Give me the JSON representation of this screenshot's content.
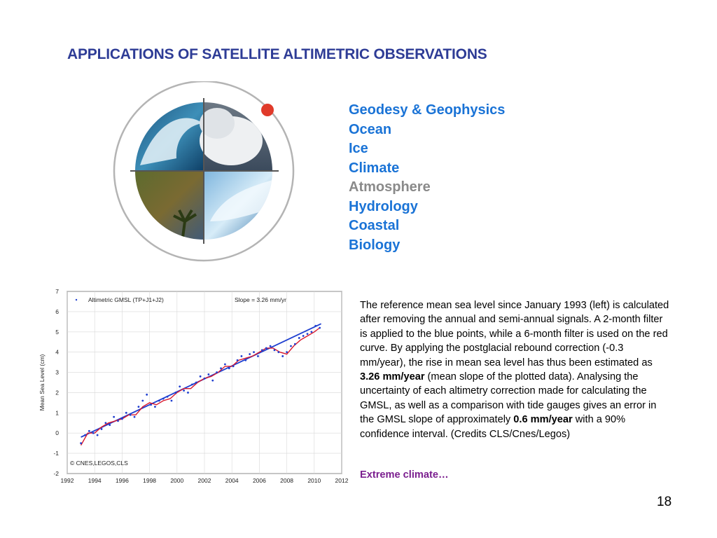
{
  "slide": {
    "title": "APPLICATIONS OF SATELLITE ALTIMETRIC OBSERVATIONS",
    "page_number": "18"
  },
  "topics": [
    {
      "label": "Geodesy & Geophysics",
      "color": "#1a73d6"
    },
    {
      "label": "Ocean",
      "color": "#1a73d6"
    },
    {
      "label": "Ice",
      "color": "#1a73d6"
    },
    {
      "label": "Climate",
      "color": "#1a73d6"
    },
    {
      "label": "Atmosphere",
      "color": "#8a8a8a"
    },
    {
      "label": "Hydrology",
      "color": "#1a73d6"
    },
    {
      "label": "Coastal",
      "color": "#1a73d6"
    },
    {
      "label": "Biology",
      "color": "#1a73d6"
    }
  ],
  "description": {
    "part1": "The reference mean sea level since January 1993 (left) is calculated after removing the annual and semi-annual signals. A 2-month filter is applied to the blue points, while a 6-month filter is used on the red curve. By applying the postglacial rebound correction (-0.3 mm/year), the  rise in mean sea level has thus been estimated as ",
    "bold1": "3.26 mm/year",
    "part2": " (mean slope of the plotted data). Analysing the uncertainty of each altimetry correction made for calculating the GMSL, as well as a comparison with tide gauges gives an error in the GMSL slope of approximately ",
    "bold2": "0.6 mm/year",
    "part3": " with a 90% confidence interval. (Credits CLS/Cnes/Legos)"
  },
  "extreme_link": "Extreme climate…",
  "chart_data": {
    "type": "scatter",
    "ylabel": "Mean Sea Level (cm)",
    "xlim": [
      1992,
      2012
    ],
    "ylim": [
      -2,
      7
    ],
    "x_ticks": [
      "1992",
      "1994",
      "1996",
      "1998",
      "2000",
      "2002",
      "2004",
      "2006",
      "2008",
      "2010",
      "2012"
    ],
    "y_ticks": [
      "-2",
      "-1",
      "0",
      "1",
      "2",
      "3",
      "4",
      "5",
      "6",
      "7"
    ],
    "legend": "Altimetric GMSL (TP+J1+J2)",
    "slope_label": "Slope = 3.26 mm/yr",
    "credit": "© CNES,LEGOS,CLS",
    "trend": {
      "x": [
        1993.0,
        2010.5
      ],
      "y": [
        -0.2,
        5.4
      ]
    },
    "series": [
      {
        "name": "Altimetric GMSL (TP+J1+J2)",
        "color": "#1f3fd0",
        "x": [
          1993.0,
          1993.3,
          1993.6,
          1993.9,
          1994.2,
          1994.5,
          1994.8,
          1995.1,
          1995.4,
          1995.7,
          1996.0,
          1996.3,
          1996.6,
          1996.9,
          1997.2,
          1997.5,
          1997.8,
          1998.1,
          1998.4,
          1998.7,
          1999.0,
          1999.3,
          1999.6,
          1999.9,
          2000.2,
          2000.5,
          2000.8,
          2001.1,
          2001.4,
          2001.7,
          2002.0,
          2002.3,
          2002.6,
          2002.9,
          2003.2,
          2003.5,
          2003.8,
          2004.1,
          2004.4,
          2004.7,
          2005.0,
          2005.3,
          2005.6,
          2005.9,
          2006.2,
          2006.5,
          2006.8,
          2007.1,
          2007.4,
          2007.7,
          2008.0,
          2008.3,
          2008.6,
          2008.9,
          2009.2,
          2009.5,
          2009.8,
          2010.1,
          2010.4
        ],
        "y": [
          -0.5,
          -0.1,
          0.1,
          0.0,
          -0.1,
          0.2,
          0.5,
          0.4,
          0.8,
          0.6,
          0.7,
          1.0,
          0.9,
          0.8,
          1.3,
          1.6,
          1.9,
          1.4,
          1.3,
          1.6,
          1.7,
          1.8,
          1.6,
          2.0,
          2.3,
          2.1,
          2.0,
          2.4,
          2.5,
          2.8,
          2.7,
          2.9,
          2.6,
          3.0,
          3.2,
          3.4,
          3.2,
          3.3,
          3.6,
          3.8,
          3.6,
          3.9,
          4.0,
          3.8,
          4.1,
          4.2,
          4.3,
          4.1,
          4.0,
          3.8,
          4.0,
          4.3,
          4.4,
          4.7,
          4.8,
          4.9,
          5.0,
          5.3,
          5.2
        ]
      }
    ],
    "smooth": {
      "name": "6-month filter",
      "color": "#d9182d",
      "x": [
        1993.0,
        1993.5,
        1994.0,
        1994.5,
        1995.0,
        1995.5,
        1996.0,
        1996.5,
        1997.0,
        1997.5,
        1998.0,
        1998.5,
        1999.0,
        1999.5,
        2000.0,
        2000.5,
        2001.0,
        2001.5,
        2002.0,
        2002.5,
        2003.0,
        2003.5,
        2004.0,
        2004.5,
        2005.0,
        2005.5,
        2006.0,
        2006.5,
        2007.0,
        2007.5,
        2008.0,
        2008.5,
        2009.0,
        2009.5,
        2010.0,
        2010.4
      ],
      "y": [
        -0.6,
        0.0,
        0.0,
        0.3,
        0.5,
        0.6,
        0.7,
        0.9,
        0.9,
        1.3,
        1.5,
        1.4,
        1.6,
        1.7,
        2.0,
        2.2,
        2.2,
        2.5,
        2.7,
        2.8,
        3.0,
        3.3,
        3.3,
        3.6,
        3.7,
        3.8,
        4.0,
        4.2,
        4.2,
        4.0,
        3.9,
        4.3,
        4.6,
        4.8,
        5.0,
        5.2
      ]
    }
  },
  "emblem": {
    "ring_color": "#b4b4b4",
    "marker_color": "#e03a2a",
    "quadrants": [
      "ocean-wave",
      "cloud",
      "tropical-land",
      "ice-shelf"
    ]
  }
}
